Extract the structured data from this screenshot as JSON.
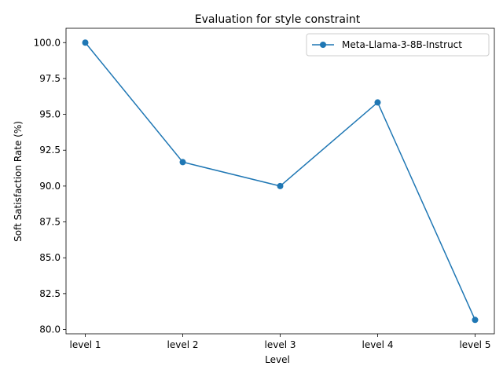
{
  "chart_data": {
    "type": "line",
    "title": "Evaluation for style constraint",
    "xlabel": "Level",
    "ylabel": "Soft Satisfaction Rate (%)",
    "categories": [
      "level 1",
      "level 2",
      "level 3",
      "level 4",
      "level 5"
    ],
    "series": [
      {
        "name": "Meta-Llama-3-8B-Instruct",
        "values": [
          100.0,
          91.67,
          90.0,
          95.83,
          80.67
        ],
        "color": "#1f77b4",
        "marker": "circle"
      }
    ],
    "yticks": [
      "80.0",
      "82.5",
      "85.0",
      "87.5",
      "90.0",
      "92.5",
      "95.0",
      "97.5",
      "100.0"
    ],
    "ylim": [
      79.7,
      101.0
    ],
    "grid": false,
    "legend_position": "top-right"
  }
}
